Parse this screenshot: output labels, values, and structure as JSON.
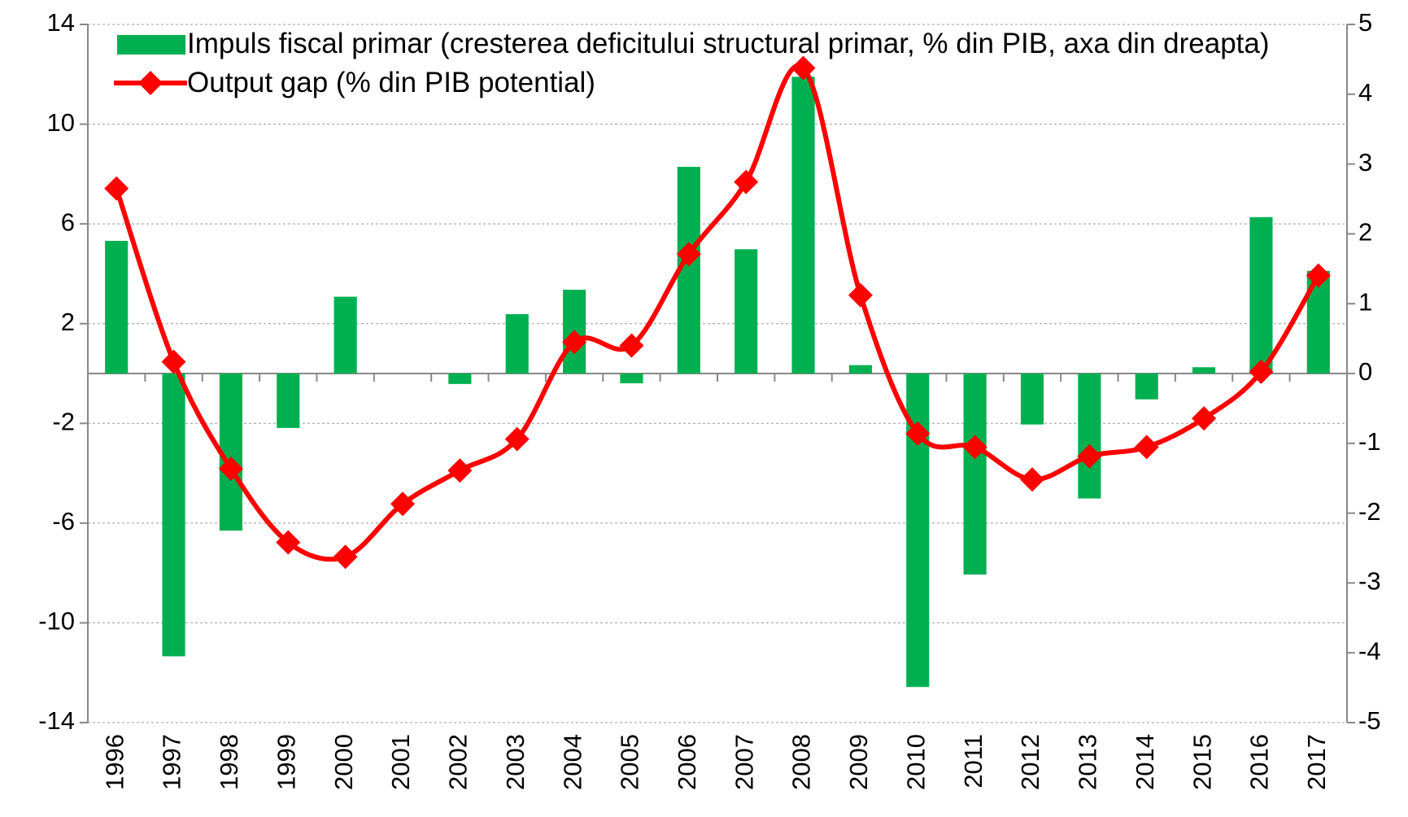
{
  "chart_data": {
    "type": "combo",
    "categories": [
      "1996",
      "1997",
      "1998",
      "1999",
      "2000",
      "2001",
      "2002",
      "2003",
      "2004",
      "2005",
      "2006",
      "2007",
      "2008",
      "2009",
      "2010",
      "2011",
      "2012",
      "2013",
      "2014",
      "2015",
      "2016",
      "2017"
    ],
    "series": [
      {
        "name": "Impuls fiscal primar (cresterea deficitului structural primar, % din PIB, axa din dreapta)",
        "type": "bar",
        "color": "#00b050",
        "axis": "y2",
        "values": [
          1.9,
          -4.05,
          -2.25,
          -0.78,
          1.1,
          0,
          -0.15,
          0.85,
          1.2,
          -0.14,
          2.96,
          1.78,
          4.25,
          0.12,
          -4.49,
          -2.88,
          -0.73,
          -1.79,
          -0.37,
          0.09,
          2.24,
          1.47
        ]
      },
      {
        "name": "Output gap (% din PIB potential)",
        "type": "line",
        "color": "#ff0000",
        "values": [
          7.42,
          0.47,
          -3.82,
          -6.77,
          -7.35,
          -5.23,
          -3.89,
          -2.63,
          1.26,
          1.12,
          4.79,
          7.68,
          12.25,
          3.14,
          -2.41,
          -2.95,
          -4.25,
          -3.32,
          -2.95,
          -1.8,
          0.07,
          3.93
        ]
      }
    ],
    "ylim": [
      -14,
      14
    ],
    "yticks": [
      -14,
      -10,
      -6,
      -2,
      2,
      6,
      10,
      14
    ],
    "y2lim": [
      -5,
      5
    ],
    "y2ticks": [
      -5,
      -4,
      -3,
      -2,
      -1,
      0,
      1,
      2,
      3,
      4,
      5
    ],
    "grid": true,
    "legend": "upper-left"
  }
}
